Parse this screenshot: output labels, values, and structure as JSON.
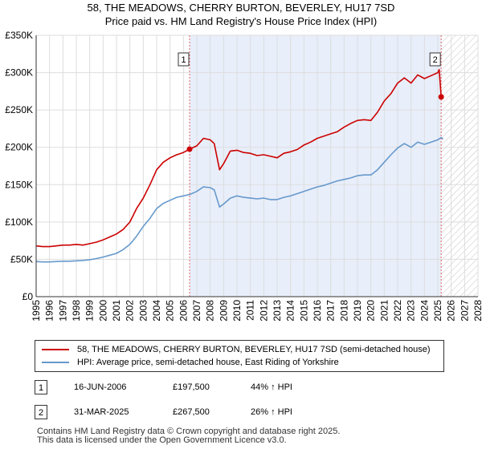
{
  "title_line1": "58, THE MEADOWS, CHERRY BURTON, BEVERLEY, HU17 7SD",
  "title_line2": "Price paid vs. HM Land Registry's House Price Index (HPI)",
  "chart_data": {
    "type": "line",
    "title": "58, THE MEADOWS, CHERRY BURTON, BEVERLEY, HU17 7SD — Price paid vs. HM Land Registry's House Price Index (HPI)",
    "xlabel": "",
    "ylabel": "",
    "xlim": [
      1995,
      2028
    ],
    "ylim": [
      0,
      350000
    ],
    "grid": true,
    "legend_position": "bottom",
    "x_ticks": [
      1995,
      1996,
      1997,
      1998,
      1999,
      2000,
      2001,
      2002,
      2003,
      2004,
      2005,
      2006,
      2007,
      2008,
      2009,
      2010,
      2011,
      2012,
      2013,
      2014,
      2015,
      2016,
      2017,
      2018,
      2019,
      2020,
      2021,
      2022,
      2023,
      2024,
      2025,
      2026,
      2027,
      2028
    ],
    "y_ticks": [
      {
        "value": 0,
        "label": "£0"
      },
      {
        "value": 50000,
        "label": "£50K"
      },
      {
        "value": 100000,
        "label": "£100K"
      },
      {
        "value": 150000,
        "label": "£150K"
      },
      {
        "value": 200000,
        "label": "£200K"
      },
      {
        "value": 250000,
        "label": "£250K"
      },
      {
        "value": 300000,
        "label": "£300K"
      },
      {
        "value": 350000,
        "label": "£350K"
      }
    ],
    "shaded_periods": [
      {
        "from": 2006.46,
        "to": 2025.25,
        "style": "tinted"
      },
      {
        "from": 2025.25,
        "to": 2028,
        "style": "hatched"
      }
    ],
    "series": [
      {
        "name": "58, THE MEADOWS, CHERRY BURTON, BEVERLEY, HU17 7SD (semi-detached house)",
        "color": "#cc0000",
        "x": [
          1995,
          1995.5,
          1996,
          1996.5,
          1997,
          1997.5,
          1998,
          1998.5,
          1999,
          1999.5,
          2000,
          2000.5,
          2001,
          2001.5,
          2002,
          2002.5,
          2003,
          2003.5,
          2004,
          2004.5,
          2005,
          2005.5,
          2006,
          2006.46,
          2007,
          2007.5,
          2008,
          2008.3,
          2008.7,
          2009,
          2009.5,
          2010,
          2010.5,
          2011,
          2011.5,
          2012,
          2012.5,
          2013,
          2013.5,
          2014,
          2014.5,
          2015,
          2015.5,
          2016,
          2016.5,
          2017,
          2017.5,
          2018,
          2018.5,
          2019,
          2019.5,
          2020,
          2020.5,
          2021,
          2021.5,
          2022,
          2022.5,
          2023,
          2023.5,
          2024,
          2024.5,
          2025,
          2025.1,
          2025.25,
          2025.4
        ],
        "values": [
          68000,
          67000,
          67000,
          68000,
          69000,
          69000,
          70000,
          69000,
          71000,
          73000,
          76000,
          80000,
          84000,
          90000,
          100000,
          118000,
          132000,
          150000,
          170000,
          180000,
          186000,
          190000,
          193000,
          197500,
          202000,
          212000,
          210000,
          205000,
          170000,
          178000,
          195000,
          196000,
          193000,
          192000,
          189000,
          190000,
          188000,
          186000,
          192000,
          194000,
          197000,
          203000,
          207000,
          212000,
          215000,
          218000,
          221000,
          227000,
          232000,
          236000,
          237000,
          236000,
          247000,
          262000,
          272000,
          286000,
          293000,
          286000,
          297000,
          292000,
          296000,
          300000,
          304000,
          267500,
          265000
        ]
      },
      {
        "name": "HPI: Average price, semi-detached house, East Riding of Yorkshire",
        "color": "#6699cc",
        "x": [
          1995,
          1995.5,
          1996,
          1996.5,
          1997,
          1997.5,
          1998,
          1998.5,
          1999,
          1999.5,
          2000,
          2000.5,
          2001,
          2001.5,
          2002,
          2002.5,
          2003,
          2003.5,
          2004,
          2004.5,
          2005,
          2005.5,
          2006,
          2006.5,
          2007,
          2007.5,
          2008,
          2008.3,
          2008.7,
          2009,
          2009.5,
          2010,
          2010.5,
          2011,
          2011.5,
          2012,
          2012.5,
          2013,
          2013.5,
          2014,
          2014.5,
          2015,
          2015.5,
          2016,
          2016.5,
          2017,
          2017.5,
          2018,
          2018.5,
          2019,
          2019.5,
          2020,
          2020.5,
          2021,
          2021.5,
          2022,
          2022.5,
          2023,
          2023.5,
          2024,
          2024.5,
          2025,
          2025.25,
          2025.4
        ],
        "values": [
          47000,
          46500,
          46500,
          47000,
          47500,
          47500,
          48000,
          48500,
          49500,
          51000,
          53000,
          55500,
          58000,
          63000,
          70000,
          81000,
          94000,
          105000,
          118000,
          125000,
          129000,
          133000,
          135000,
          137000,
          141000,
          147000,
          146000,
          143000,
          120000,
          124000,
          132000,
          135000,
          133000,
          132000,
          131000,
          132000,
          130000,
          130000,
          133000,
          135000,
          138000,
          141000,
          144000,
          147000,
          149000,
          152000,
          155000,
          157000,
          159000,
          162000,
          163000,
          163000,
          170000,
          180000,
          190000,
          199000,
          205000,
          200000,
          207000,
          204000,
          207000,
          210000,
          213000,
          211000
        ]
      }
    ],
    "annotations": [
      {
        "label": "1",
        "x": 2006.46,
        "y": 197500
      },
      {
        "label": "2",
        "x": 2025.25,
        "y": 267500
      }
    ]
  },
  "transactions": [
    {
      "num": "1",
      "date": "16-JUN-2006",
      "price": "£197,500",
      "hpi": "44% ↑ HPI"
    },
    {
      "num": "2",
      "date": "31-MAR-2025",
      "price": "£267,500",
      "hpi": "26% ↑ HPI"
    }
  ],
  "footer_line1": "Contains HM Land Registry data © Crown copyright and database right 2025.",
  "footer_line2": "This data is licensed under the Open Government Licence v3.0."
}
